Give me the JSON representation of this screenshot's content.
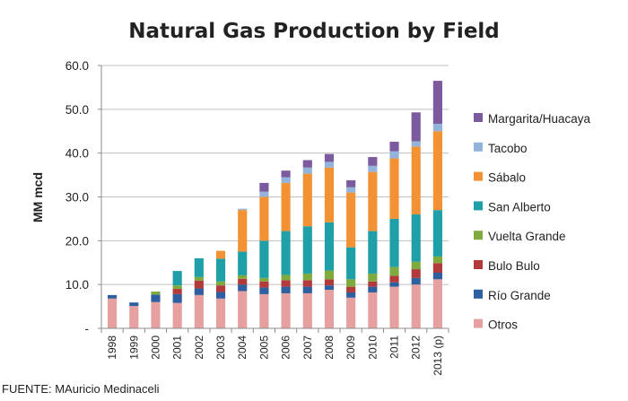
{
  "chart_data": {
    "type": "bar",
    "stacked": true,
    "title": "Natural Gas Production by Field",
    "xlabel": "",
    "ylabel": "MM mcd",
    "ylim": [
      0,
      60
    ],
    "yticks": [
      0,
      10,
      20,
      30,
      40,
      50,
      60
    ],
    "ytick_labels": [
      "-",
      "10.0",
      "20.0",
      "30.0",
      "40.0",
      "50.0",
      "60.0"
    ],
    "grid": true,
    "legend_position": "right",
    "categories": [
      "1998",
      "1999",
      "2000",
      "2001",
      "2002",
      "2003",
      "2004",
      "2005",
      "2006",
      "2007",
      "2008",
      "2009",
      "2010",
      "2011",
      "2012",
      "2013 (p)"
    ],
    "series": [
      {
        "name": "Otros",
        "color": "#E6A0A0",
        "values": [
          6.8,
          5.1,
          6.0,
          5.8,
          7.6,
          6.8,
          8.5,
          7.8,
          8.0,
          8.0,
          8.8,
          7.0,
          8.2,
          9.5,
          10.0,
          11.2
        ]
      },
      {
        "name": "Río Grande",
        "color": "#2E5F9E",
        "values": [
          0.8,
          0.8,
          1.7,
          2.0,
          1.5,
          1.5,
          1.5,
          1.5,
          1.5,
          1.5,
          1.0,
          1.2,
          1.3,
          1.0,
          1.5,
          1.5
        ]
      },
      {
        "name": "Bulo Bulo",
        "color": "#B23A3A",
        "values": [
          0,
          0,
          0,
          1.2,
          1.8,
          1.5,
          1.3,
          1.4,
          1.5,
          1.5,
          1.4,
          1.3,
          1.2,
          1.5,
          2.0,
          2.2
        ]
      },
      {
        "name": "Vuelta Grande",
        "color": "#7FAA3E",
        "values": [
          0,
          0,
          0.7,
          0.8,
          0.8,
          0.9,
          0.8,
          0.8,
          1.2,
          1.5,
          2.0,
          1.7,
          1.8,
          2.0,
          1.7,
          1.5
        ]
      },
      {
        "name": "San Alberto",
        "color": "#1FA0A8",
        "values": [
          0,
          0,
          0,
          3.3,
          4.3,
          5.2,
          5.4,
          8.5,
          10.0,
          10.8,
          11.0,
          7.3,
          9.7,
          11.0,
          10.8,
          10.6
        ]
      },
      {
        "name": "Sábalo",
        "color": "#F39234",
        "values": [
          0,
          0,
          0,
          0,
          0,
          1.8,
          9.5,
          10.0,
          11.0,
          12.0,
          12.5,
          12.5,
          13.5,
          13.8,
          15.5,
          18.0
        ]
      },
      {
        "name": "Tacobo",
        "color": "#93B3DB",
        "values": [
          0,
          0,
          0,
          0,
          0,
          0,
          0.3,
          1.2,
          1.3,
          1.4,
          1.3,
          1.2,
          1.4,
          1.6,
          1.2,
          1.7
        ]
      },
      {
        "name": "Margarita/Huacaya",
        "color": "#7C5A9E",
        "values": [
          0,
          0,
          0,
          0,
          0,
          0,
          0,
          2.0,
          1.5,
          1.7,
          1.8,
          1.6,
          2.0,
          2.2,
          6.6,
          9.8
        ]
      }
    ]
  },
  "source_note": "FUENTE: MAuricio Medinaceli"
}
